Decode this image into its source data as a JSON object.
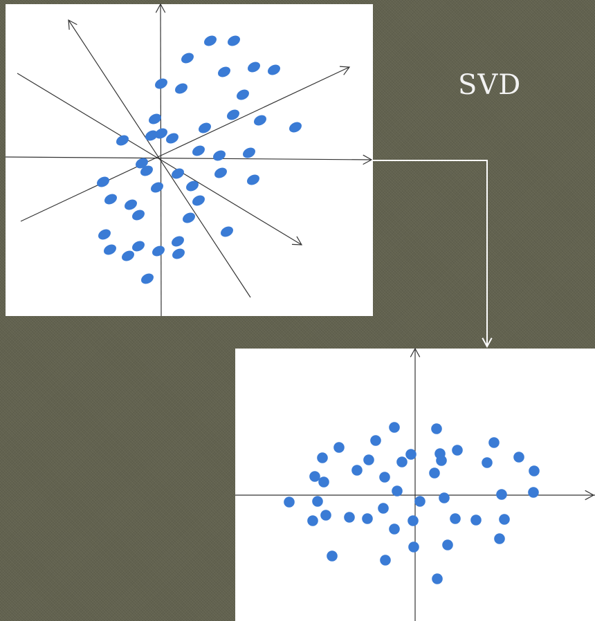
{
  "title": "SVD",
  "colors": {
    "background": "#62624f",
    "panel": "#ffffff",
    "point": "#3a7bd5",
    "axis": "#333333",
    "connector": "#ffffff",
    "title": "#f2f2f2"
  }
}
